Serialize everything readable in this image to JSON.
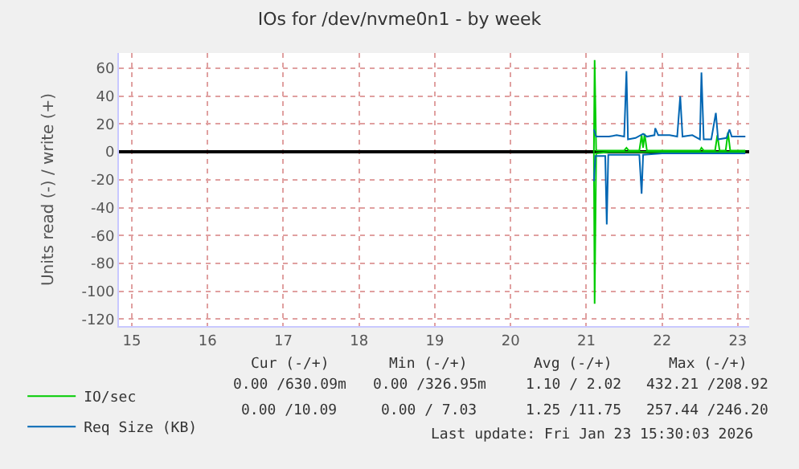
{
  "chart_data": {
    "type": "line",
    "title": "IOs for /dev/nvme0n1 - by week",
    "ylabel": "Units read (-) / write (+)",
    "xlim": [
      14.83,
      23.15
    ],
    "ylim": [
      -125,
      71
    ],
    "xticks": [
      15,
      16,
      17,
      18,
      19,
      20,
      21,
      22,
      23
    ],
    "yticks": [
      -120,
      -100,
      -80,
      -60,
      -40,
      -20,
      0,
      20,
      40,
      60
    ],
    "grid": true,
    "legend": "bottom left",
    "marker": "none",
    "line_style": "solid",
    "series": [
      {
        "name": "IO/sec",
        "color": "#00cc00",
        "x": [
          21.1,
          21.11,
          21.13,
          21.3,
          21.5,
          21.53,
          21.56,
          21.7,
          21.73,
          21.75,
          21.77,
          21.8,
          22.0,
          22.5,
          22.52,
          22.55,
          22.7,
          22.73,
          22.76,
          22.84,
          22.87,
          22.9,
          23.1,
          null,
          21.1,
          21.11,
          21.13,
          21.3,
          23.1
        ],
        "values": [
          0,
          66,
          1,
          1,
          1,
          3,
          1,
          1,
          12,
          3,
          13,
          1,
          1,
          1,
          3,
          1,
          1,
          12,
          1,
          1,
          14,
          1,
          1,
          null,
          0,
          -109,
          -1,
          0,
          0
        ]
      },
      {
        "name": "Req Size (KB)",
        "color": "#0066b3",
        "x": [
          21.1,
          21.13,
          21.2,
          21.3,
          21.4,
          21.5,
          21.53,
          21.55,
          21.65,
          21.75,
          21.8,
          21.9,
          21.91,
          21.95,
          22.1,
          22.2,
          22.24,
          22.27,
          22.4,
          22.5,
          22.52,
          22.55,
          22.65,
          22.71,
          22.74,
          22.85,
          22.89,
          22.92,
          23.0,
          23.1,
          null,
          21.1,
          21.12,
          21.25,
          21.27,
          21.29,
          21.7,
          21.73,
          21.75,
          22.0,
          23.1
        ],
        "values": [
          16,
          11,
          11,
          11,
          12,
          11,
          58,
          9,
          10,
          13,
          11,
          12,
          17,
          12,
          12,
          11,
          40,
          11,
          12,
          9,
          57,
          9,
          9,
          28,
          9,
          10,
          16,
          11,
          11,
          11,
          null,
          -21,
          -3,
          -3,
          -52,
          -2,
          -2,
          -30,
          -2,
          -1,
          -1
        ]
      }
    ],
    "annotations": [
      "Cur (-/+)",
      "Min (-/+)",
      "Avg (-/+)",
      "Max (-/+)",
      "0.00 /630.09m",
      "0.00 /326.95m",
      "1.10 / 2.02",
      "432.21 /208.92",
      "0.00 /10.09",
      "0.00 / 7.03",
      "1.25 /11.75",
      "257.44 /246.20",
      "Last update: Fri Jan 23 15:30:03 2026"
    ]
  }
}
